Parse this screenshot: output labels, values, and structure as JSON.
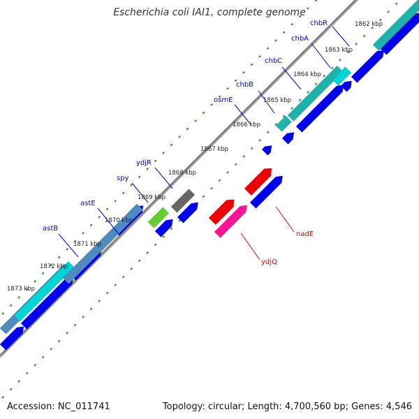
{
  "title": "Escherichia coli IAI1, complete genome",
  "footer": {
    "accession": "Accession: NC_011741",
    "summary": "Topology: circular; Length: 4,700,560 bp; Genes: 4,546"
  },
  "colors": {
    "background": "#ffffff",
    "backbone": "#888888",
    "tick_dots": "#228b22",
    "label_blue": "#0000cc",
    "label_red": "#cc0000",
    "cds": "#0000ee",
    "cyan_gene": "#00d4d4",
    "teal_gene": "#20b2aa",
    "steel_gene": "#4f8bbf",
    "gray_gene": "#666666",
    "green_gene": "#66cc33",
    "red_gene": "#ee0000",
    "pink_gene": "#ff1493"
  },
  "scale_ticks": [
    "1862 kbp",
    "1863 kbp",
    "1864 kbp",
    "1865 kbp",
    "1866 kbp",
    "1867 kbp",
    "1868 kbp",
    "1869 kbp",
    "1870 kbp",
    "1871 kbp",
    "1872 kbp",
    "1873 kbp"
  ],
  "gene_labels_top": [
    "chbR",
    "chbA",
    "chbC",
    "chbB",
    "osmE",
    "ydjR",
    "spy",
    "astE",
    "astB"
  ],
  "gene_labels_bottom": [
    "nadE",
    "ydjQ"
  ]
}
